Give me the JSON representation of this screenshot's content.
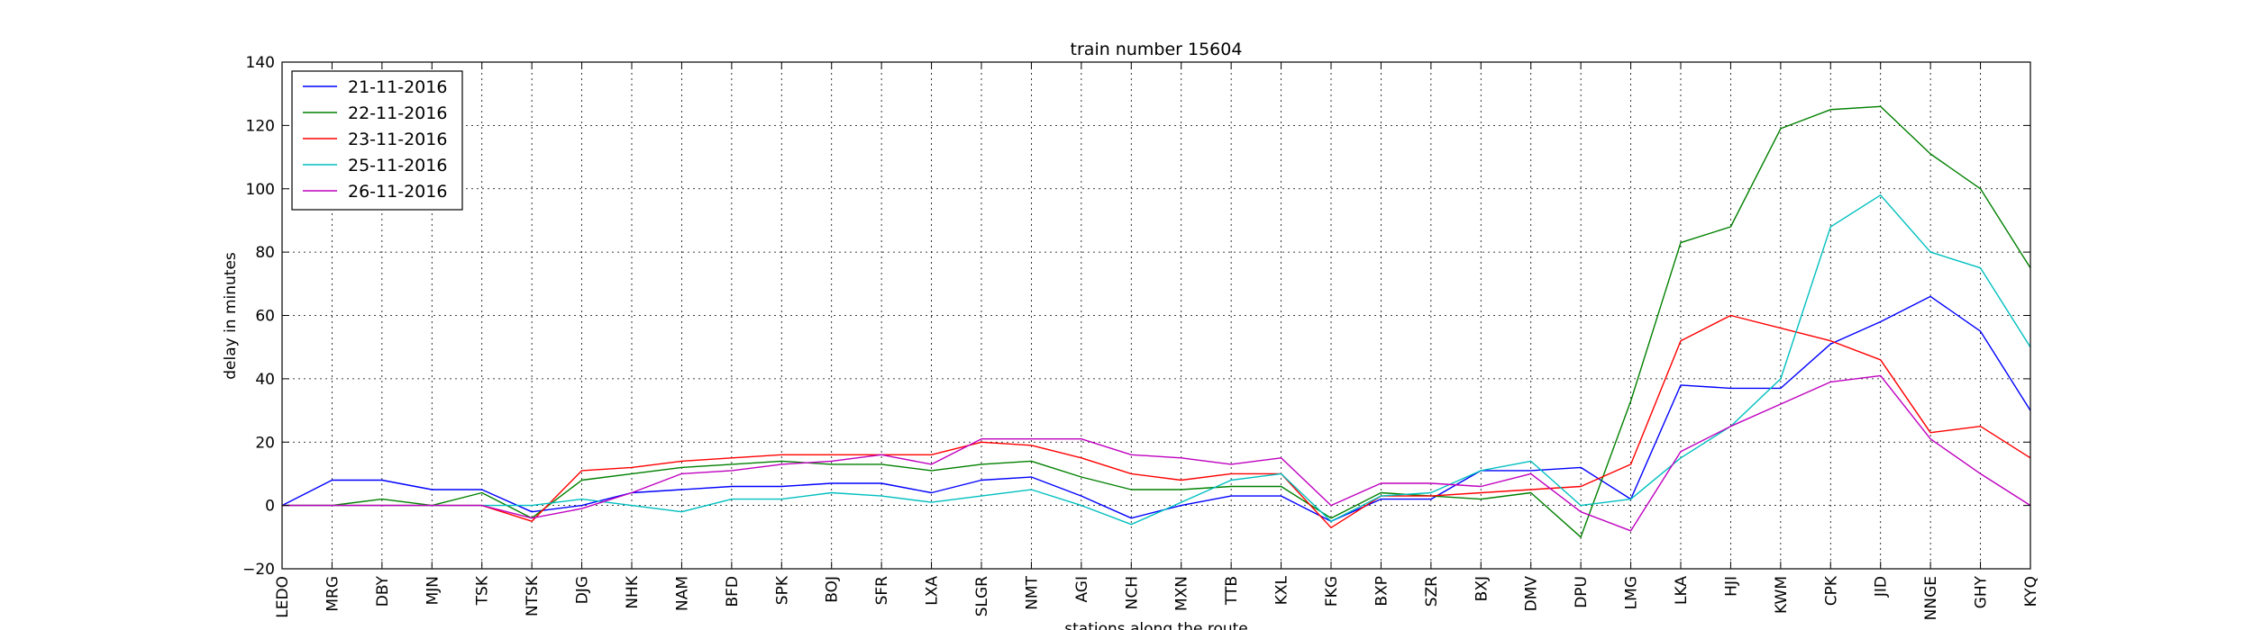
{
  "chart_data": {
    "type": "line",
    "title": "train number 15604",
    "xlabel": "stations along the route",
    "ylabel": "delay in minutes",
    "ylim": [
      -20,
      140
    ],
    "yticks": [
      -20,
      0,
      20,
      40,
      60,
      80,
      100,
      120,
      140
    ],
    "grid": true,
    "legend_position": "top-left",
    "categories": [
      "LEDO",
      "MRG",
      "DBY",
      "MJN",
      "TSK",
      "NTSK",
      "DJG",
      "NHK",
      "NAM",
      "BFD",
      "SPK",
      "BOJ",
      "SFR",
      "LXA",
      "SLGR",
      "NMT",
      "AGI",
      "NCH",
      "MXN",
      "TTB",
      "KXL",
      "FKG",
      "BXP",
      "SZR",
      "BXJ",
      "DMV",
      "DPU",
      "LMG",
      "LKA",
      "HJI",
      "KWM",
      "CPK",
      "JID",
      "NNGE",
      "GHY",
      "KYQ"
    ],
    "series": [
      {
        "name": "21-11-2016",
        "color": "#0000ff",
        "values": [
          0,
          8,
          8,
          5,
          5,
          -2,
          0,
          4,
          5,
          6,
          6,
          7,
          7,
          4,
          8,
          9,
          3,
          -4,
          0,
          3,
          3,
          -5,
          2,
          2,
          11,
          11,
          12,
          2,
          38,
          37,
          37,
          51,
          58,
          66,
          55,
          30
        ]
      },
      {
        "name": "22-11-2016",
        "color": "#008000",
        "values": [
          0,
          0,
          2,
          0,
          4,
          -4,
          8,
          10,
          12,
          13,
          14,
          13,
          13,
          11,
          13,
          14,
          9,
          5,
          5,
          6,
          6,
          -4,
          4,
          3,
          2,
          4,
          -10,
          33,
          83,
          88,
          119,
          125,
          126,
          111,
          100,
          75
        ]
      },
      {
        "name": "23-11-2016",
        "color": "#ff0000",
        "values": [
          0,
          0,
          0,
          0,
          0,
          -5,
          11,
          12,
          14,
          15,
          16,
          16,
          16,
          16,
          20,
          19,
          15,
          10,
          8,
          10,
          10,
          -7,
          3,
          3,
          4,
          5,
          6,
          13,
          52,
          60,
          56,
          52,
          46,
          23,
          25,
          15
        ]
      },
      {
        "name": "25-11-2016",
        "color": "#00bfbf",
        "values": [
          0,
          0,
          0,
          0,
          0,
          0,
          2,
          0,
          -2,
          2,
          2,
          4,
          3,
          1,
          3,
          5,
          0,
          -6,
          1,
          8,
          10,
          -5,
          3,
          4,
          11,
          14,
          0,
          2,
          15,
          25,
          40,
          88,
          98,
          80,
          75,
          50
        ]
      },
      {
        "name": "26-11-2016",
        "color": "#bf00bf",
        "values": [
          0,
          0,
          0,
          0,
          0,
          -4,
          -1,
          4,
          10,
          11,
          13,
          14,
          16,
          13,
          21,
          21,
          21,
          16,
          15,
          13,
          15,
          0,
          7,
          7,
          6,
          10,
          -2,
          -8,
          17,
          25,
          32,
          39,
          41,
          21,
          10,
          0
        ]
      }
    ]
  }
}
